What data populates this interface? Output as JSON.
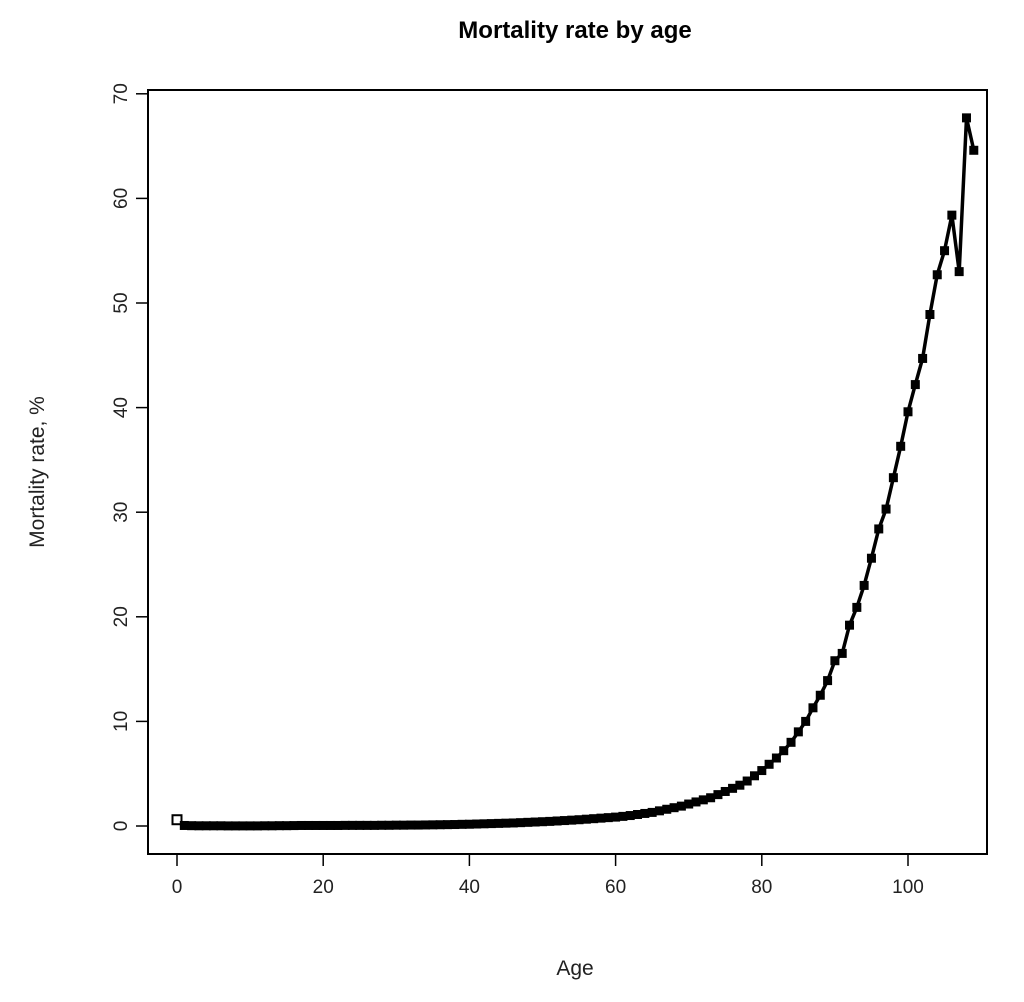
{
  "chart_data": {
    "type": "line",
    "title": "Mortality rate by age",
    "xlabel": "Age",
    "ylabel": "Mortality rate, %",
    "xlim": [
      0,
      110
    ],
    "ylim": [
      0,
      70
    ],
    "x_ticks": [
      "0",
      "20",
      "40",
      "60",
      "80",
      "100"
    ],
    "y_ticks": [
      "0",
      "10",
      "20",
      "30",
      "40",
      "50",
      "60",
      "70"
    ],
    "colors": {
      "line": "#000000",
      "axis": "#000000",
      "background": "#ffffff"
    },
    "series": [
      {
        "name": "Mortality rate",
        "x": [
          0,
          1,
          2,
          3,
          4,
          5,
          6,
          7,
          8,
          9,
          10,
          11,
          12,
          13,
          14,
          15,
          16,
          17,
          18,
          19,
          20,
          21,
          22,
          23,
          24,
          25,
          26,
          27,
          28,
          29,
          30,
          31,
          32,
          33,
          34,
          35,
          36,
          37,
          38,
          39,
          40,
          41,
          42,
          43,
          44,
          45,
          46,
          47,
          48,
          49,
          50,
          51,
          52,
          53,
          54,
          55,
          56,
          57,
          58,
          59,
          60,
          61,
          62,
          63,
          64,
          65,
          66,
          67,
          68,
          69,
          70,
          71,
          72,
          73,
          74,
          75,
          76,
          77,
          78,
          79,
          80,
          81,
          82,
          83,
          84,
          85,
          86,
          87,
          88,
          89,
          90,
          91,
          92,
          93,
          94,
          95,
          96,
          97,
          98,
          99,
          100,
          101,
          102,
          103,
          104,
          105,
          106,
          107,
          108,
          109
        ],
        "values": [
          0.6,
          0.05,
          0.03,
          0.02,
          0.02,
          0.02,
          0.02,
          0.01,
          0.01,
          0.01,
          0.01,
          0.01,
          0.02,
          0.02,
          0.03,
          0.03,
          0.04,
          0.05,
          0.05,
          0.05,
          0.05,
          0.05,
          0.05,
          0.06,
          0.06,
          0.06,
          0.06,
          0.06,
          0.07,
          0.07,
          0.08,
          0.08,
          0.09,
          0.09,
          0.1,
          0.11,
          0.12,
          0.13,
          0.14,
          0.16,
          0.17,
          0.19,
          0.21,
          0.23,
          0.25,
          0.27,
          0.29,
          0.32,
          0.35,
          0.38,
          0.41,
          0.44,
          0.48,
          0.52,
          0.56,
          0.6,
          0.65,
          0.7,
          0.75,
          0.8,
          0.85,
          0.92,
          1.0,
          1.1,
          1.2,
          1.3,
          1.45,
          1.6,
          1.75,
          1.9,
          2.1,
          2.3,
          2.5,
          2.7,
          3.0,
          3.3,
          3.6,
          3.9,
          4.3,
          4.8,
          5.3,
          5.9,
          6.5,
          7.2,
          8.0,
          9.0,
          10.0,
          11.3,
          12.5,
          13.9,
          15.8,
          16.5,
          19.2,
          20.9,
          23.0,
          25.6,
          28.4,
          30.3,
          33.3,
          36.3,
          39.6,
          42.2,
          44.7,
          48.9,
          52.7,
          55.0,
          58.4,
          53.0,
          67.7,
          64.6
        ]
      }
    ]
  }
}
